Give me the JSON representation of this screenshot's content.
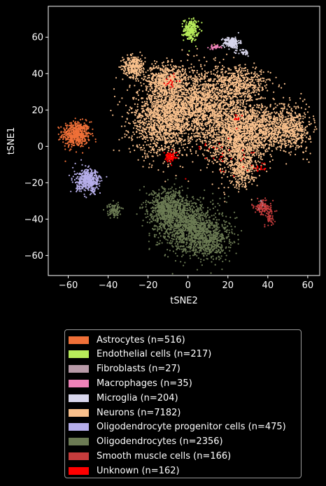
{
  "chart_data": {
    "type": "scatter",
    "title": "",
    "xlabel": "tSNE2",
    "ylabel": "tSNE1",
    "xlim": [
      -70,
      66
    ],
    "ylim": [
      -71,
      77
    ],
    "xticks": [
      -60,
      -40,
      -20,
      0,
      20,
      40,
      60
    ],
    "yticks": [
      -60,
      -40,
      -20,
      0,
      20,
      40,
      60
    ],
    "grid": false,
    "legend_position": "below-plot",
    "background": "#000000",
    "series": [
      {
        "name": "Astrocytes (n=516)",
        "color": "#f07038",
        "clusters": [
          {
            "cx": -56,
            "cy": 6.5,
            "sx": 3.5,
            "sy": 3.5,
            "n": 516
          }
        ]
      },
      {
        "name": "Endothelial cells (n=217)",
        "color": "#b8ec5a",
        "clusters": [
          {
            "cx": 1.5,
            "cy": 64,
            "sx": 1.8,
            "sy": 3,
            "n": 217
          }
        ]
      },
      {
        "name": "Fibroblasts (n=27)",
        "color": "#b89aa8",
        "clusters": [
          {
            "cx": 37,
            "cy": -32,
            "sx": 0.8,
            "sy": 1.2,
            "n": 27
          }
        ]
      },
      {
        "name": "Macrophages (n=35)",
        "color": "#ee82b8",
        "clusters": [
          {
            "cx": 13.5,
            "cy": 54.5,
            "sx": 1.5,
            "sy": 0.5,
            "n": 35
          }
        ]
      },
      {
        "name": "Microglia (n=204)",
        "color": "#d8d6ec",
        "clusters": [
          {
            "cx": 22,
            "cy": 57,
            "sx": 2,
            "sy": 1.6,
            "n": 170
          },
          {
            "cx": 28,
            "cy": 51.5,
            "sx": 1.5,
            "sy": 1,
            "n": 34
          }
        ]
      },
      {
        "name": "Neurons (n=7182)",
        "color": "#f9c08c",
        "clusters": [
          {
            "cx": -27,
            "cy": 44,
            "sx": 2.8,
            "sy": 3,
            "n": 300
          },
          {
            "cx": -11,
            "cy": 37,
            "sx": 5,
            "sy": 4,
            "n": 500
          },
          {
            "cx": -13,
            "cy": 15,
            "sx": 8,
            "sy": 10,
            "n": 1400
          },
          {
            "cx": 6,
            "cy": 23,
            "sx": 10,
            "sy": 10,
            "n": 1700
          },
          {
            "cx": 24,
            "cy": 5,
            "sx": 8,
            "sy": 10,
            "n": 1300
          },
          {
            "cx": 38,
            "cy": 10,
            "sx": 8,
            "sy": 6,
            "n": 800
          },
          {
            "cx": 53,
            "cy": 10,
            "sx": 4,
            "sy": 6,
            "n": 400
          },
          {
            "cx": 27,
            "cy": 34,
            "sx": 7,
            "sy": 5,
            "n": 500
          },
          {
            "cx": 27,
            "cy": -13,
            "sx": 3,
            "sy": 5,
            "n": 282
          }
        ]
      },
      {
        "name": "Oligodendrocyte progenitor cells (n=475)",
        "color": "#b6aeea",
        "clusters": [
          {
            "cx": -50,
            "cy": -19,
            "sx": 3,
            "sy": 3,
            "n": 475
          }
        ]
      },
      {
        "name": "Oligodendrocytes (n=2356)",
        "color": "#6b7a53",
        "clusters": [
          {
            "cx": -10,
            "cy": -34,
            "sx": 5,
            "sy": 5,
            "n": 700
          },
          {
            "cx": 1,
            "cy": -44,
            "sx": 8,
            "sy": 7,
            "n": 1100
          },
          {
            "cx": 10,
            "cy": -52,
            "sx": 6,
            "sy": 5,
            "n": 450
          },
          {
            "cx": -37,
            "cy": -35,
            "sx": 1.5,
            "sy": 2,
            "n": 106
          }
        ]
      },
      {
        "name": "Smooth muscle cells (n=166)",
        "color": "#c43c3c",
        "clusters": [
          {
            "cx": 38,
            "cy": -34,
            "sx": 2.5,
            "sy": 2,
            "n": 130
          },
          {
            "cx": 41,
            "cy": -40,
            "sx": 1,
            "sy": 1.5,
            "n": 36
          }
        ]
      },
      {
        "name": "Unknown (n=162)",
        "color": "#ff0000",
        "clusters": [
          {
            "cx": -9,
            "cy": -6,
            "sx": 1.5,
            "sy": 1.5,
            "n": 80
          },
          {
            "cx": -9,
            "cy": 35,
            "sx": 2,
            "sy": 2,
            "n": 20
          },
          {
            "cx": 25,
            "cy": 16,
            "sx": 1,
            "sy": 1,
            "n": 12
          },
          {
            "cx": 36,
            "cy": -12,
            "sx": 1.5,
            "sy": 1,
            "n": 15
          },
          {
            "cx": 18,
            "cy": -5,
            "sx": 10,
            "sy": 6,
            "n": 35
          }
        ]
      }
    ]
  }
}
